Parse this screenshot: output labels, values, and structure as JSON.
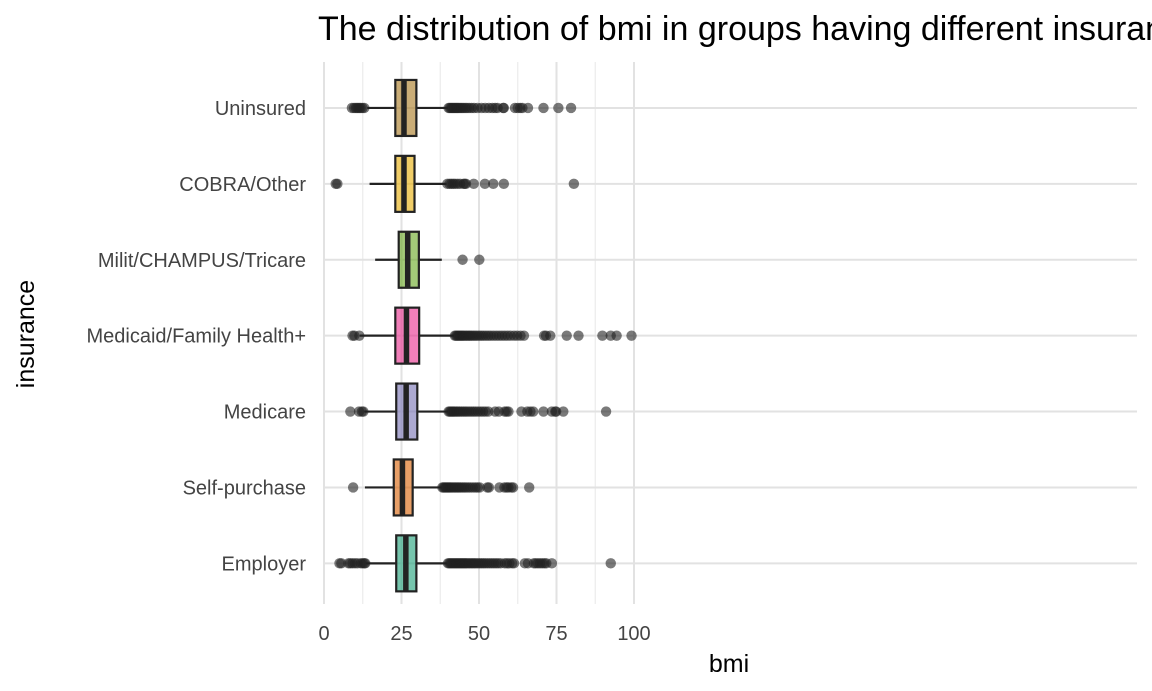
{
  "chart_data": {
    "type": "boxplot",
    "title": "The distribution of bmi in groups having different insurance",
    "xlabel": "bmi",
    "ylabel": "insurance",
    "xlim": [
      -2,
      104
    ],
    "x_ticks": [
      0,
      25,
      50,
      75,
      100
    ],
    "grid": true,
    "legend": "none",
    "categories": [
      "Uninsured",
      "COBRA/Other",
      "Milit/CHAMPUS/Tricare",
      "Medicaid/Family Health+",
      "Medicare",
      "Self-purchase",
      "Employer"
    ],
    "boxes": [
      {
        "category": "Uninsured",
        "color": "#A6761D",
        "whisker_low": 14.0,
        "q1": 23.0,
        "median": 25.8,
        "q3": 29.8,
        "whisker_high": 40.0,
        "outliers": [
          9.0,
          9.7,
          10.3,
          10.8,
          11.3,
          11.8,
          12.4,
          13.0,
          40.2,
          40.6,
          41.0,
          41.4,
          41.8,
          42.2,
          42.6,
          43.0,
          43.4,
          43.9,
          44.4,
          44.9,
          45.5,
          46.1,
          46.8,
          47.6,
          48.4,
          49.5,
          50.8,
          52.0,
          53.2,
          54.3,
          55.2,
          56.0,
          57.8,
          58.0,
          61.6,
          62.5,
          63.3,
          64.0,
          65.8,
          70.8,
          75.6,
          79.7
        ]
      },
      {
        "category": "COBRA/Other",
        "color": "#E6AB02",
        "whisker_low": 14.7,
        "q1": 23.0,
        "median": 25.8,
        "q3": 29.2,
        "whisker_high": 39.5,
        "outliers": [
          3.8,
          4.3,
          39.8,
          40.5,
          41.1,
          41.7,
          42.3,
          43.1,
          43.9,
          45.0,
          45.4,
          45.8,
          48.3,
          51.9,
          54.6,
          58.0,
          80.6
        ]
      },
      {
        "category": "Milit/CHAMPUS/Tricare",
        "color": "#66A61E",
        "whisker_low": 16.5,
        "q1": 24.1,
        "median": 27.0,
        "q3": 30.6,
        "whisker_high": 38.0,
        "outliers": [
          44.7,
          50.1
        ]
      },
      {
        "category": "Medicaid/Family Health+",
        "color": "#E7298A",
        "whisker_low": 11.5,
        "q1": 23.0,
        "median": 26.6,
        "q3": 30.7,
        "whisker_high": 42.0,
        "outliers": [
          9.2,
          9.8,
          11.4,
          42.2,
          42.6,
          43.0,
          43.4,
          43.8,
          44.2,
          44.6,
          45.0,
          45.5,
          46.0,
          46.5,
          47.0,
          47.5,
          48.1,
          48.7,
          49.3,
          50.0,
          50.7,
          51.4,
          52.2,
          53.0,
          53.8,
          54.7,
          55.6,
          56.5,
          57.4,
          58.3,
          59.2,
          60.2,
          61.3,
          62.3,
          63.4,
          64.5,
          71.0,
          71.6,
          73.0,
          78.3,
          82.1,
          89.8,
          92.5,
          94.4,
          99.2
        ]
      },
      {
        "category": "Medicare",
        "color": "#7570B3",
        "whisker_low": 13.0,
        "q1": 23.3,
        "median": 26.5,
        "q3": 30.1,
        "whisker_high": 40.0,
        "outliers": [
          8.5,
          11.3,
          12.2,
          12.7,
          40.2,
          40.6,
          41.0,
          41.4,
          41.8,
          42.2,
          42.7,
          43.2,
          43.7,
          44.3,
          44.9,
          45.5,
          46.1,
          46.8,
          47.5,
          48.2,
          48.9,
          49.7,
          50.5,
          51.3,
          52.1,
          53.0,
          55.2,
          56.4,
          58.3,
          58.9,
          59.5,
          63.7,
          65.6,
          66.6,
          67.5,
          70.8,
          73.5,
          74.6,
          74.9,
          77.2,
          91.0
        ]
      },
      {
        "category": "Self-purchase",
        "color": "#D95F02",
        "whisker_low": 13.2,
        "q1": 22.5,
        "median": 25.3,
        "q3": 28.6,
        "whisker_high": 38.0,
        "outliers": [
          9.4,
          38.2,
          38.6,
          39.0,
          39.4,
          39.8,
          40.2,
          40.6,
          41.0,
          41.5,
          42.0,
          42.5,
          43.0,
          43.5,
          44.0,
          44.6,
          45.2,
          45.8,
          46.5,
          47.2,
          48.0,
          48.8,
          49.5,
          50.2,
          52.7,
          53.2,
          56.6,
          58.2,
          58.9,
          59.5,
          60.4,
          61.0,
          66.2
        ]
      },
      {
        "category": "Employer",
        "color": "#1B9E77",
        "whisker_low": 13.6,
        "q1": 23.3,
        "median": 26.4,
        "q3": 29.8,
        "whisker_high": 39.8,
        "outliers": [
          5.0,
          5.6,
          7.9,
          8.5,
          9.2,
          10.0,
          10.8,
          11.9,
          12.5,
          13.0,
          13.3,
          40.0,
          40.4,
          40.8,
          41.2,
          41.6,
          42.0,
          42.4,
          42.8,
          43.2,
          43.6,
          44.0,
          44.4,
          44.8,
          45.2,
          45.6,
          46.0,
          46.5,
          47.0,
          47.5,
          48.0,
          48.5,
          49.0,
          49.6,
          50.2,
          50.8,
          51.4,
          52.0,
          52.7,
          53.4,
          54.1,
          54.8,
          55.5,
          56.2,
          57.0,
          58.3,
          59.0,
          59.8,
          60.7,
          61.3,
          64.8,
          65.8,
          67.7,
          68.3,
          69.0,
          69.7,
          70.4,
          71.1,
          71.7,
          73.5,
          92.5
        ]
      }
    ]
  }
}
